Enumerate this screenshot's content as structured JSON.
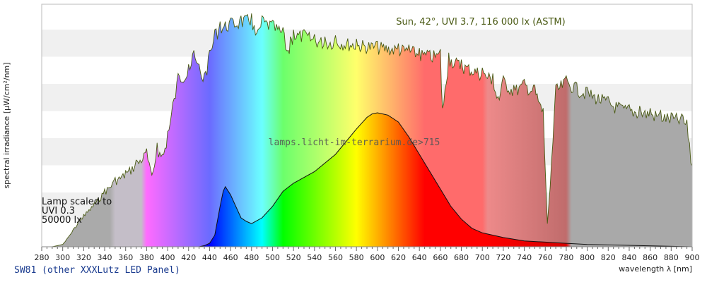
{
  "chart_data": {
    "type": "area",
    "xlabel": "wavelength λ [nm]",
    "ylabel": "spectral irradiance [µW/cm²/nm]",
    "xlim": [
      280,
      900
    ],
    "x_ticks": [
      280,
      300,
      320,
      340,
      360,
      380,
      400,
      420,
      440,
      460,
      480,
      500,
      520,
      540,
      560,
      580,
      600,
      620,
      640,
      660,
      680,
      700,
      720,
      740,
      760,
      780,
      800,
      820,
      840,
      860,
      880,
      900
    ],
    "grid": "horizontal bands",
    "series": [
      {
        "name": "Sun, 42°, UVI 3.7, 116 000 lx (ASTM)",
        "x": [
          290,
          300,
          305,
          310,
          315,
          320,
          330,
          340,
          350,
          360,
          370,
          380,
          385,
          390,
          395,
          400,
          405,
          410,
          420,
          425,
          430,
          435,
          440,
          445,
          450,
          460,
          470,
          480,
          485,
          490,
          500,
          510,
          515,
          517,
          520,
          530,
          540,
          550,
          560,
          580,
          600,
          620,
          630,
          640,
          650,
          660,
          662,
          668,
          680,
          700,
          710,
          715,
          720,
          730,
          740,
          750,
          758,
          762,
          766,
          770,
          780,
          790,
          800,
          820,
          830,
          840,
          850,
          860,
          870,
          880,
          890,
          895,
          900
        ],
        "y": [
          0,
          2,
          8,
          15,
          22,
          28,
          38,
          50,
          60,
          66,
          75,
          85,
          62,
          90,
          80,
          100,
          125,
          150,
          158,
          170,
          158,
          150,
          170,
          188,
          195,
          198,
          200,
          202,
          185,
          200,
          196,
          190,
          170,
          182,
          188,
          188,
          184,
          182,
          183,
          180,
          178,
          176,
          175,
          172,
          170,
          171,
          120,
          168,
          162,
          155,
          150,
          130,
          148,
          140,
          145,
          140,
          120,
          20,
          75,
          140,
          148,
          142,
          138,
          130,
          125,
          123,
          122,
          120,
          118,
          116,
          115,
          110,
          70
        ]
      },
      {
        "name": "SW81 (other XXXLutz LED Panel)",
        "x": [
          380,
          400,
          420,
          430,
          435,
          440,
          445,
          450,
          453,
          455,
          460,
          465,
          470,
          475,
          480,
          490,
          500,
          510,
          520,
          540,
          560,
          580,
          590,
          595,
          600,
          605,
          610,
          620,
          630,
          640,
          650,
          660,
          670,
          680,
          690,
          700,
          720,
          740,
          760,
          780,
          800,
          850,
          900
        ],
        "y": [
          0,
          0,
          0,
          0,
          1,
          3,
          10,
          35,
          48,
          52,
          45,
          35,
          25,
          22,
          20,
          25,
          35,
          48,
          55,
          65,
          80,
          102,
          112,
          115,
          116,
          115,
          114,
          108,
          95,
          80,
          65,
          50,
          35,
          24,
          16,
          12,
          8,
          5,
          4,
          3,
          2,
          1,
          0
        ]
      }
    ],
    "annotations": {
      "sun_label": "Sun, 42°, UVI 3.7, 116 000 lx (ASTM)",
      "lamp_label": [
        "Lamp scaled to",
        "UVI 0.3",
        "50000 lx"
      ],
      "watermark": "lamps.licht-im-terrarium.de>715"
    }
  },
  "footer": "SW81 (other XXXLutz LED Panel)",
  "colors": {
    "sun_stroke": "#4a5a14",
    "lamp_stroke": "#111111",
    "band": "#f0f0f0",
    "ir_gray": "#a9a9a9",
    "uv_gray": "#aaaaaa"
  }
}
